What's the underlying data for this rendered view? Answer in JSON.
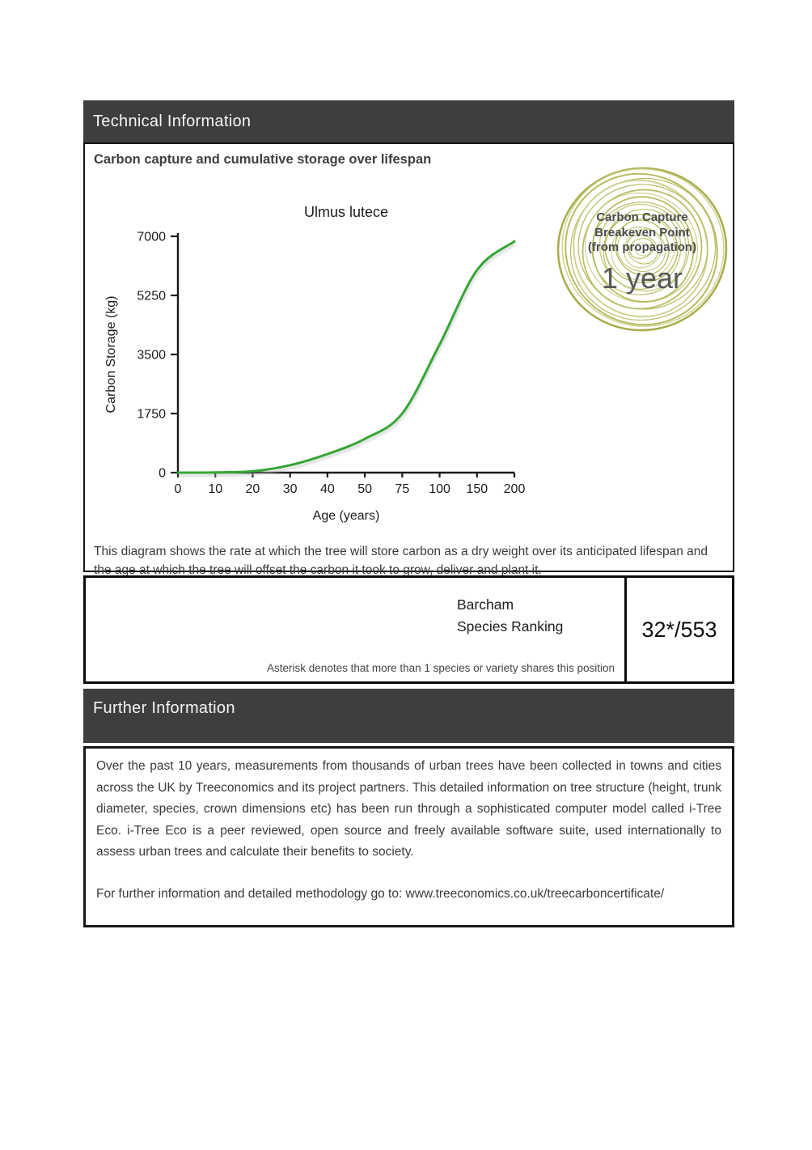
{
  "technical": {
    "title": "Technical Information",
    "heading": "Carbon capture and cumulative storage over lifespan",
    "caption": "This diagram shows the rate at which the tree will store carbon as a dry weight over its anticipated lifespan and the age at which the tree will offset the carbon it took to grow, deliver and plant it."
  },
  "chart_data": {
    "type": "line",
    "title": "Ulmus lutece",
    "xlabel": "Age (years)",
    "ylabel": "Carbon Storage (kg)",
    "x_ticks": [
      "0",
      "10",
      "20",
      "30",
      "40",
      "50",
      "75",
      "100",
      "150",
      "200"
    ],
    "y_ticks": [
      "0",
      "1750",
      "3500",
      "5250",
      "7000"
    ],
    "x": [
      0,
      10,
      20,
      30,
      40,
      50,
      75,
      100,
      150,
      200
    ],
    "values": [
      0,
      5,
      40,
      220,
      550,
      1000,
      1750,
      3800,
      6000,
      6850
    ],
    "ylim": [
      0,
      7000
    ],
    "grid": false,
    "legend": "none",
    "line_color": "#35a535",
    "axis_color": "#1a1a1a"
  },
  "badge": {
    "line1": "Carbon Capture",
    "line2": "Breakeven Point",
    "line3": "(from propagation)",
    "value": "1 year",
    "ring_color": "#b7bc62",
    "ring_color_light": "#cdd18d",
    "ring_color_dark": "#a9ae4e"
  },
  "ranking": {
    "label_line1": "Barcham",
    "label_line2": "Species Ranking",
    "value": "32*/553",
    "note": "Asterisk denotes that more than 1 species or variety shares this position"
  },
  "further": {
    "title": "Further Information",
    "paragraph1": "Over the past 10 years, measurements from thousands of urban trees have been collected in towns and cities across the UK by Treeconomics and its project partners. This detailed information on tree structure (height, trunk diameter, species, crown dimensions etc) has been run through a sophisticated computer model called i-Tree Eco. i-Tree Eco is a peer reviewed, open source and freely available software suite, used internationally to assess urban trees and calculate their benefits to society.",
    "paragraph2": "For further information and detailed methodology go to: www.treeconomics.co.uk/treecarboncertificate/"
  },
  "colors": {
    "band_bg": "#3e3e3e",
    "band_text": "#f5f5f5",
    "body_text": "#3a3a3a"
  }
}
